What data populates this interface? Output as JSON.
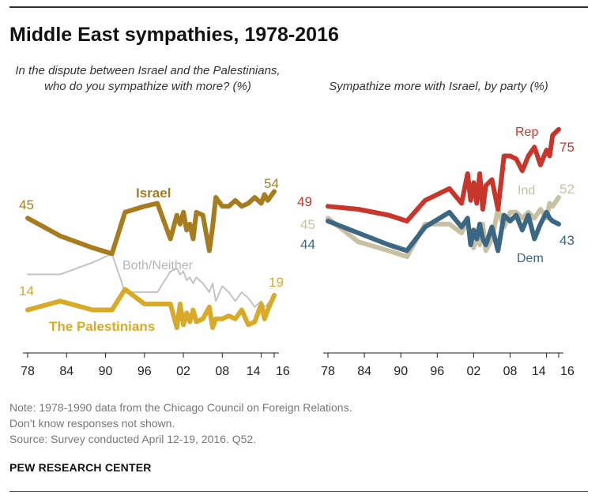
{
  "title": "Middle East sympathies, 1978-2016",
  "colors": {
    "israel": "#a67c1f",
    "palestinians": "#d9a928",
    "both": "#c4c4c4",
    "rep": "#c8352b",
    "ind": "#c8c0a3",
    "dem": "#3b6783",
    "axis": "#222222"
  },
  "notes": [
    "Note: 1978-1990 data from the Chicago Council on Foreign Relations.",
    "Don’t know responses not shown.",
    "Source: Survey conducted April 12-19, 2016. Q52."
  ],
  "source_org": "PEW RESEARCH CENTER",
  "chart_data": [
    {
      "type": "line",
      "subtitle": "In the dispute between Israel and the Palestinians, who do you sympathize with more? (%)",
      "xticks": [
        "78",
        "84",
        "90",
        "96",
        "02",
        "08",
        "14",
        "16"
      ],
      "xlim": [
        1978,
        2016
      ],
      "ylim": [
        0,
        80
      ],
      "grid": false,
      "series": [
        {
          "name": "Israel",
          "start_label": "45",
          "end_label": "54",
          "x": [
            1978,
            1983,
            1988,
            1991,
            1993,
            1996,
            1998,
            2000,
            2001,
            2001.5,
            2002,
            2002.5,
            2003,
            2003.5,
            2004,
            2005,
            2006,
            2006.5,
            2007,
            2008,
            2009,
            2010,
            2011,
            2012,
            2013,
            2014,
            2014.5,
            2015,
            2016
          ],
          "values": [
            45,
            39,
            35,
            33,
            47,
            49,
            50,
            38,
            46,
            43,
            47,
            41,
            43,
            38,
            47,
            46,
            34,
            42,
            52,
            49,
            49,
            51,
            49,
            50,
            52,
            50,
            53,
            51,
            54
          ]
        },
        {
          "name": "Both/Neither",
          "x": [
            1978,
            1983,
            1988,
            1991,
            1993,
            1996,
            1998,
            2000,
            2001,
            2001.5,
            2002,
            2002.5,
            2003,
            2003.5,
            2004,
            2005,
            2006,
            2006.5,
            2007,
            2008,
            2009,
            2010,
            2011,
            2012,
            2013,
            2014,
            2014.5,
            2015,
            2016
          ],
          "values": [
            26,
            26,
            30,
            33,
            20,
            20,
            20,
            27,
            28,
            26,
            27,
            24,
            25,
            23,
            25,
            23,
            20,
            23,
            17,
            22,
            20,
            17,
            20,
            18,
            15,
            17,
            15,
            16,
            19
          ]
        },
        {
          "name": "The Palestinians",
          "start_label": "14",
          "end_label": "19",
          "x": [
            1978,
            1983,
            1988,
            1991,
            1993,
            1996,
            1998,
            2000,
            2001,
            2001.5,
            2002,
            2002.5,
            2003,
            2003.5,
            2004,
            2005,
            2006,
            2006.5,
            2007,
            2008,
            2009,
            2010,
            2011,
            2012,
            2013,
            2014,
            2014.5,
            2015,
            2016
          ],
          "values": [
            14,
            17,
            14,
            14,
            21,
            16,
            16,
            16,
            8,
            16,
            9,
            13,
            10,
            14,
            10,
            11,
            15,
            8,
            11,
            11,
            12,
            11,
            14,
            9,
            10,
            16,
            11,
            14,
            19
          ]
        }
      ]
    },
    {
      "type": "line",
      "subtitle": "Sympathize more with Israel, by party (%)",
      "xticks": [
        "78",
        "84",
        "90",
        "96",
        "02",
        "08",
        "14",
        "16"
      ],
      "xlim": [
        1978,
        2016
      ],
      "ylim": [
        0,
        80
      ],
      "grid": false,
      "series": [
        {
          "name": "Rep",
          "start_label": "49",
          "end_label": "75",
          "x": [
            1978,
            1983,
            1988,
            1991,
            1994,
            1998,
            2000,
            2001,
            2001.5,
            2002,
            2002.5,
            2003,
            2003.5,
            2004,
            2005,
            2006,
            2007,
            2008,
            2009,
            2010,
            2011,
            2012,
            2013,
            2014,
            2014.5,
            2015,
            2016
          ],
          "values": [
            49,
            48,
            46,
            44,
            51,
            55,
            50,
            60,
            51,
            57,
            50,
            60,
            48,
            56,
            58,
            48,
            66,
            66,
            65,
            61,
            66,
            69,
            63,
            68,
            66,
            73,
            75
          ]
        },
        {
          "name": "Ind",
          "start_label": "45",
          "end_label": "52",
          "x": [
            1978,
            1983,
            1988,
            1991,
            1994,
            1998,
            2000,
            2001,
            2001.5,
            2002,
            2002.5,
            2003,
            2003.5,
            2004,
            2005,
            2006,
            2007,
            2008,
            2009,
            2010,
            2011,
            2012,
            2013,
            2014,
            2014.5,
            2015,
            2016
          ],
          "values": [
            45,
            37,
            34,
            32,
            43,
            43,
            40,
            44,
            38,
            35,
            39,
            36,
            43,
            34,
            38,
            48,
            42,
            47,
            47,
            45,
            47,
            45,
            48,
            45,
            50,
            49,
            52
          ]
        },
        {
          "name": "Dem",
          "start_label": "44",
          "end_label": "43",
          "x": [
            1978,
            1983,
            1988,
            1991,
            1994,
            1998,
            2000,
            2001,
            2001.5,
            2002,
            2002.5,
            2003,
            2003.5,
            2004,
            2005,
            2006,
            2007,
            2008,
            2009,
            2010,
            2011,
            2012,
            2013,
            2014,
            2014.5,
            2015,
            2016
          ],
          "values": [
            44,
            40,
            36,
            34,
            42,
            47,
            42,
            45,
            36,
            41,
            38,
            43,
            38,
            36,
            42,
            34,
            46,
            44,
            46,
            41,
            46,
            38,
            43,
            47,
            45,
            44,
            43
          ]
        }
      ]
    }
  ]
}
